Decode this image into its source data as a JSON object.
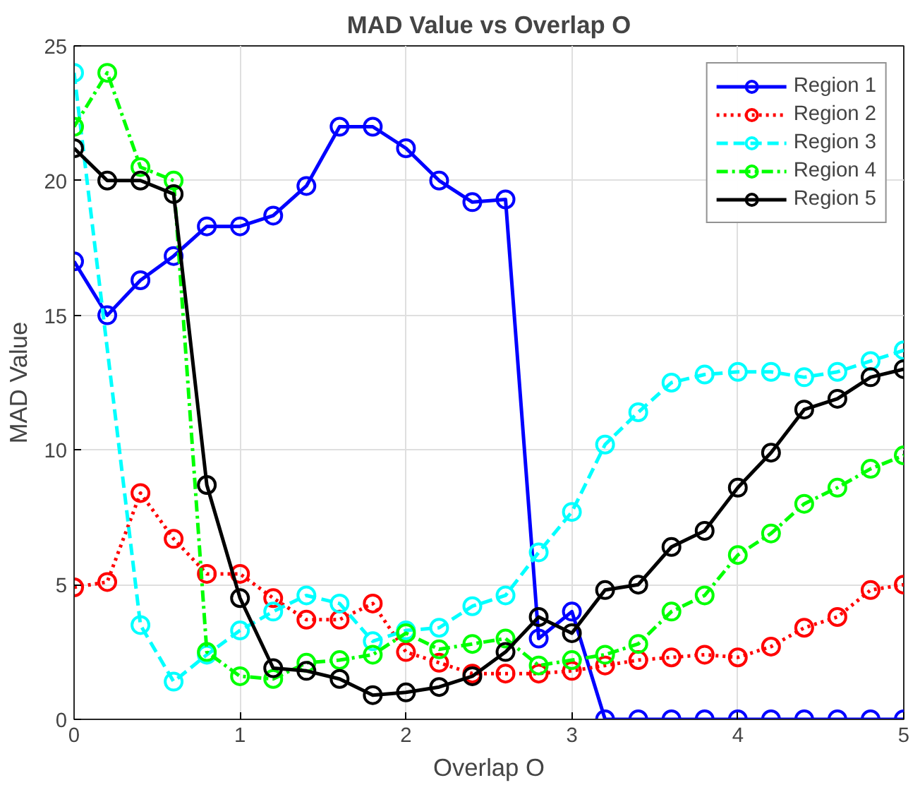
{
  "chart_data": {
    "type": "line",
    "title": "MAD Value vs Overlap O",
    "xlabel": "Overlap O",
    "ylabel": "MAD Value",
    "x": [
      0,
      0.2,
      0.4,
      0.6,
      0.8,
      1.0,
      1.2,
      1.4,
      1.6,
      1.8,
      2.0,
      2.2,
      2.4,
      2.6,
      2.8,
      3.0,
      3.2,
      3.4,
      3.6,
      3.8,
      4.0,
      4.2,
      4.4,
      4.6,
      4.8,
      5.0
    ],
    "xlim": [
      0,
      5
    ],
    "ylim": [
      0,
      25
    ],
    "xticks": [
      0,
      1,
      2,
      3,
      4,
      5
    ],
    "yticks": [
      0,
      5,
      10,
      15,
      20,
      25
    ],
    "grid": true,
    "legend": "top right",
    "marker": "circle",
    "series": [
      {
        "name": "Region 1",
        "color": "#0000ff",
        "line_style": "solid",
        "values": [
          17,
          15,
          16.3,
          17.2,
          18.3,
          18.3,
          18.7,
          19.8,
          22,
          22,
          21.2,
          20,
          19.2,
          19.3,
          3,
          4,
          0,
          0,
          0,
          0,
          0,
          0,
          0,
          0,
          0,
          0
        ]
      },
      {
        "name": "Region 2",
        "color": "#ff0000",
        "line_style": "dotted",
        "values": [
          4.9,
          5.1,
          8.4,
          6.7,
          5.4,
          5.4,
          4.5,
          3.7,
          3.7,
          4.3,
          2.5,
          2.1,
          1.7,
          1.7,
          1.7,
          1.8,
          2.0,
          2.2,
          2.3,
          2.4,
          2.3,
          2.7,
          3.4,
          3.8,
          4.8,
          5.0
        ]
      },
      {
        "name": "Region 3",
        "color": "#00ffff",
        "line_style": "dashed",
        "values": [
          24,
          null,
          3.5,
          1.4,
          2.4,
          3.3,
          4.0,
          4.6,
          4.3,
          2.9,
          3.3,
          3.4,
          4.2,
          4.6,
          6.2,
          7.7,
          10.2,
          11.4,
          12.5,
          12.8,
          12.9,
          12.9,
          12.7,
          12.9,
          13.3,
          13.7
        ]
      },
      {
        "name": "Region 4",
        "color": "#00ff00",
        "line_style": "dashdot",
        "values": [
          22,
          24,
          20.5,
          20,
          2.5,
          1.6,
          1.5,
          2.1,
          2.2,
          2.4,
          3.2,
          2.6,
          2.8,
          3.0,
          2.0,
          2.2,
          2.4,
          2.8,
          4.0,
          4.6,
          6.1,
          6.9,
          8.0,
          8.6,
          9.3,
          9.8
        ]
      },
      {
        "name": "Region 5",
        "color": "#000000",
        "line_style": "solid",
        "values": [
          21.2,
          20,
          20,
          19.5,
          8.7,
          4.5,
          1.9,
          1.8,
          1.5,
          0.9,
          1.0,
          1.2,
          1.6,
          2.5,
          3.8,
          3.2,
          4.8,
          5.0,
          6.4,
          7.0,
          8.6,
          9.9,
          11.5,
          11.9,
          12.7,
          13.0
        ]
      }
    ]
  }
}
